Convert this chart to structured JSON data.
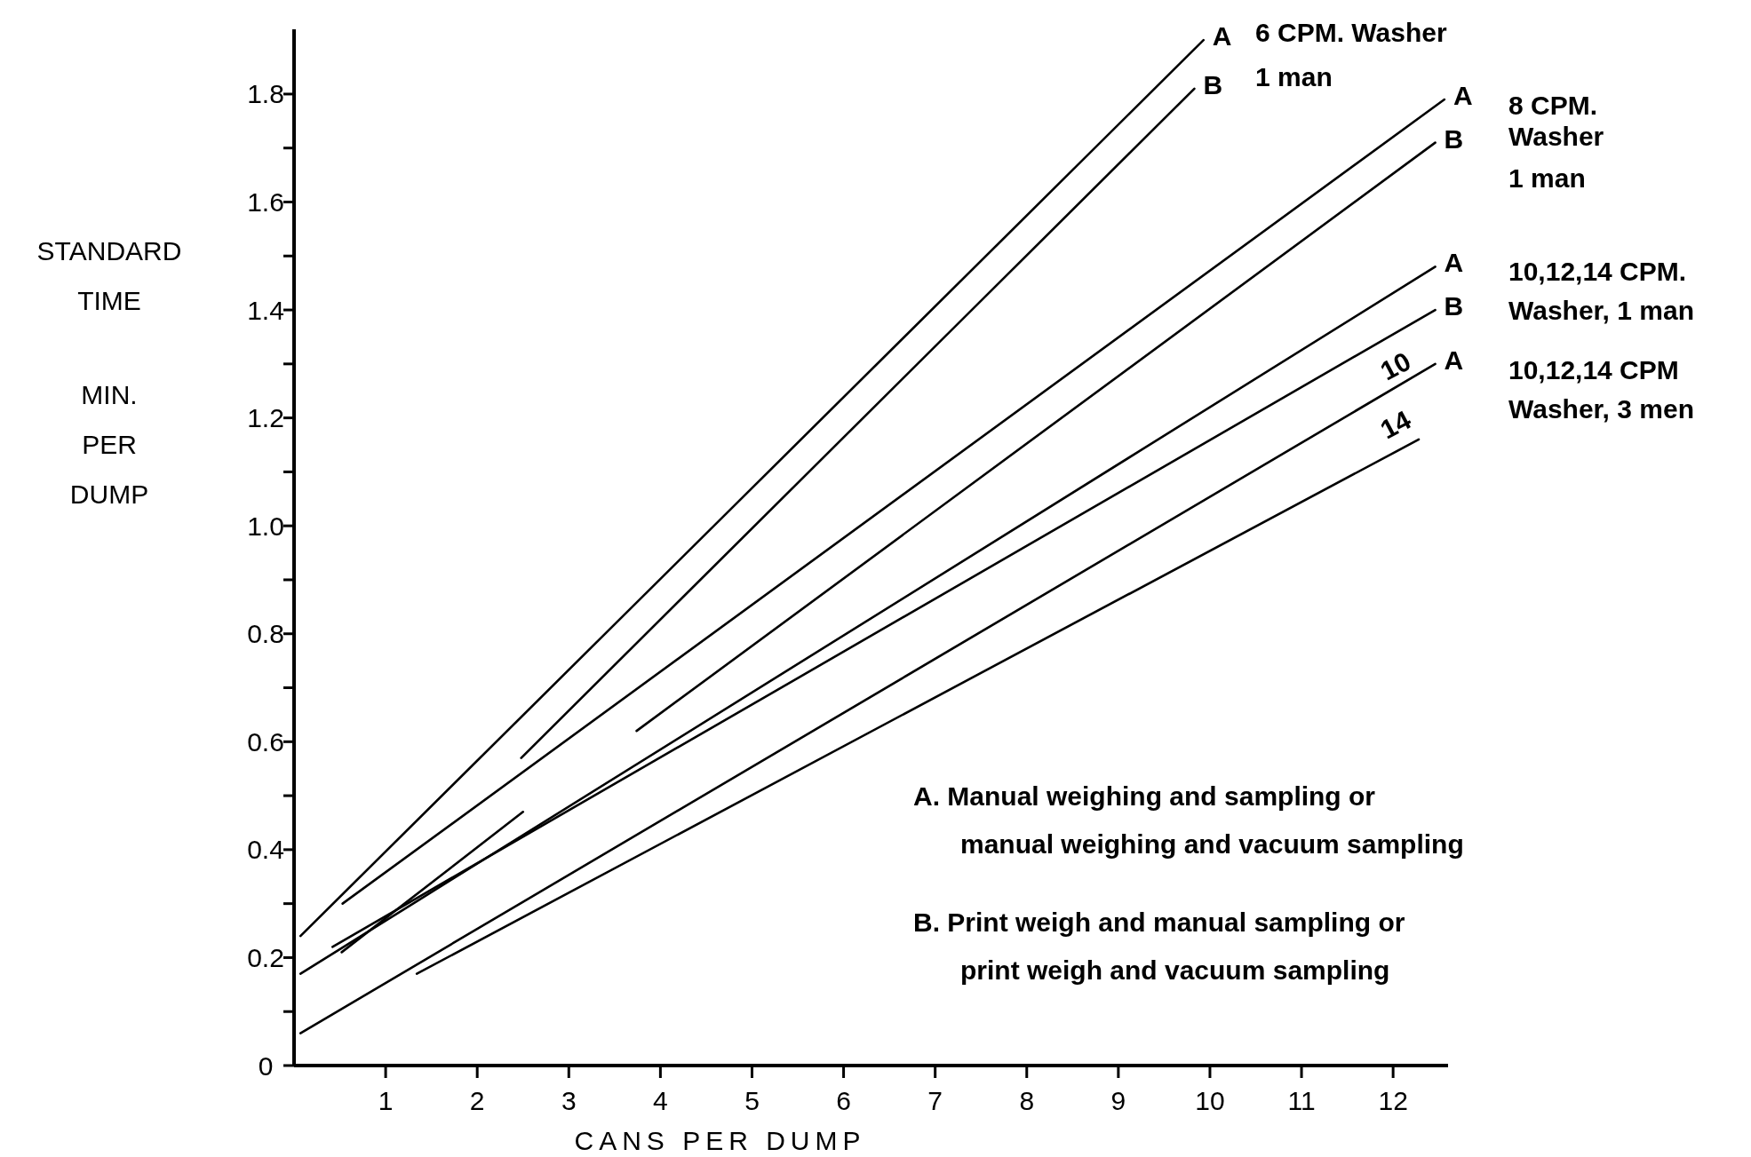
{
  "chart_data": {
    "type": "line",
    "xlabel": "CANS PER DUMP",
    "ylabel": "STANDARD TIME MIN. PER DUMP",
    "xlim": [
      0,
      12.6
    ],
    "ylim": [
      0,
      1.92
    ],
    "xticks": [
      1,
      2,
      3,
      4,
      5,
      6,
      7,
      8,
      9,
      10,
      11,
      12
    ],
    "yticks": [
      0,
      {
        "value": 0.1,
        "label": null
      },
      0.2,
      {
        "value": 0.3,
        "label": null
      },
      0.4,
      {
        "value": 0.5,
        "label": null
      },
      0.6,
      {
        "value": 0.7,
        "label": null
      },
      0.8,
      {
        "value": 0.9,
        "label": null
      },
      {
        "value": 1,
        "label": "1.0"
      },
      {
        "value": 1.1,
        "label": null
      },
      1.2,
      {
        "value": 1.3,
        "label": null
      },
      1.4,
      {
        "value": 1.5,
        "label": null
      },
      1.6,
      {
        "value": 1.7,
        "label": null
      },
      1.8
    ],
    "grid": false,
    "marker": "none",
    "line_style": "solid",
    "series": [
      {
        "name": "A",
        "color": "#000000",
        "x": [
          0.07,
          9.93
        ],
        "values": [
          0.24,
          1.9
        ]
      },
      {
        "name": "B",
        "color": "#000000",
        "x": [
          2.48,
          9.83
        ],
        "values": [
          0.57,
          1.81
        ]
      },
      {
        "name": "A",
        "color": "#000000",
        "x": [
          0.53,
          12.56
        ],
        "values": [
          0.3,
          1.79
        ]
      },
      {
        "name": "B",
        "color": "#000000",
        "x": [
          0.52,
          2.5,
          3.1,
          3.74,
          12.46
        ],
        "values": [
          0.21,
          0.47,
          null,
          0.62,
          1.71
        ]
      },
      {
        "name": "A",
        "color": "#000000",
        "x": [
          0.07,
          12.46
        ],
        "values": [
          0.17,
          1.48
        ]
      },
      {
        "name": "B",
        "color": "#000000",
        "x": [
          0.42,
          12.46
        ],
        "values": [
          0.22,
          1.4
        ]
      },
      {
        "name": "A",
        "color": "#000000",
        "x": [
          0.07,
          12.46
        ],
        "values": [
          0.06,
          1.3
        ]
      },
      {
        "color": "#000000",
        "x": [
          1.34,
          12.28
        ],
        "values": [
          0.17,
          1.16
        ]
      }
    ],
    "annotations": [
      "6 CPM. Washer",
      "1 man",
      "8 CPM.",
      "Washer",
      "1 man",
      "10,12,14 CPM.",
      "Washer, 1 man",
      "10,12,14 CPM",
      "Washer, 3 men",
      "10",
      "14",
      "A. Manual weighing and sampling or",
      "manual weighing and vacuum sampling",
      "B. Print weigh and manual sampling or",
      "print weigh and vacuum sampling"
    ]
  }
}
